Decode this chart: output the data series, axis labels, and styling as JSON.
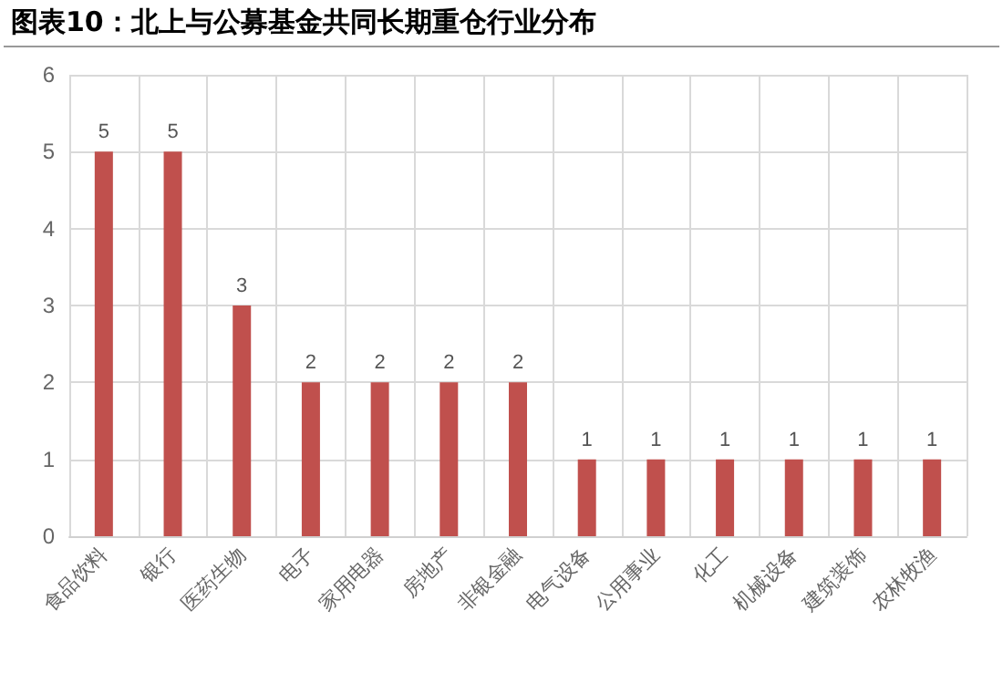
{
  "chart_data": {
    "type": "bar",
    "title": "图表10：北上与公募基金共同长期重仓行业分布",
    "categories": [
      "食品饮料",
      "银行",
      "医药生物",
      "电子",
      "家用电器",
      "房地产",
      "非银金融",
      "电气设备",
      "公用事业",
      "化工",
      "机械设备",
      "建筑装饰",
      "农林牧渔"
    ],
    "values": [
      5,
      5,
      3,
      2,
      2,
      2,
      2,
      1,
      1,
      1,
      1,
      1,
      1
    ],
    "color": "#c0504d",
    "ylim": [
      0,
      6
    ],
    "yticks": [
      0,
      1,
      2,
      3,
      4,
      5,
      6
    ],
    "grid": true,
    "data_labels": true
  }
}
